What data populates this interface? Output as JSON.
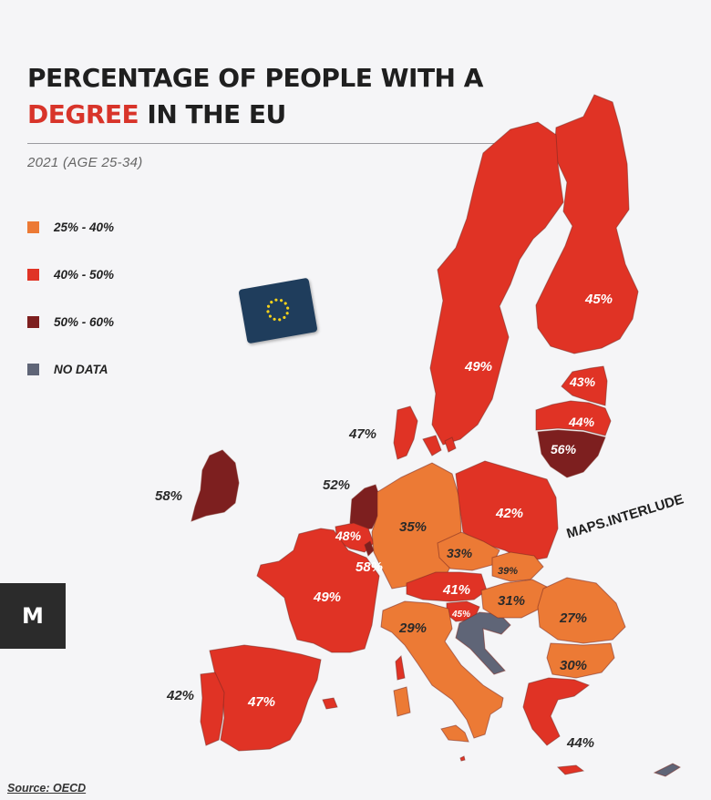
{
  "title": {
    "line1": "PERCENTAGE OF PEOPLE WITH A",
    "line2_highlight": "DEGREE",
    "line2_rest": " IN THE EU",
    "highlight_color": "#d8342a"
  },
  "subtitle": "2021  (AGE 25-34)",
  "legend": {
    "items": [
      {
        "label": "25% - 40%",
        "color": "#ec7a35"
      },
      {
        "label": "40% - 50%",
        "color": "#e03325"
      },
      {
        "label": "50% - 60%",
        "color": "#7d1f1f"
      },
      {
        "label": "NO DATA",
        "color": "#5f6577"
      }
    ]
  },
  "watermark": "MAPS.INTERLUDE",
  "logo_text": "M",
  "source": "Source: OECD",
  "eu_flag_icon": "eu-flag-icon",
  "countries": [
    {
      "id": "finland",
      "value": "45%",
      "band": 1
    },
    {
      "id": "sweden",
      "value": "49%",
      "band": 1
    },
    {
      "id": "estonia",
      "value": "43%",
      "band": 1
    },
    {
      "id": "latvia",
      "value": "44%",
      "band": 1
    },
    {
      "id": "lithuania",
      "value": "56%",
      "band": 2
    },
    {
      "id": "denmark",
      "value": "47%",
      "band": 1
    },
    {
      "id": "ireland",
      "value": "58%",
      "band": 2
    },
    {
      "id": "netherlands",
      "value": "52%",
      "band": 2
    },
    {
      "id": "belgium",
      "value": "48%",
      "band": 1
    },
    {
      "id": "luxembourg",
      "value": "58%",
      "band": 2
    },
    {
      "id": "germany",
      "value": "35%",
      "band": 0
    },
    {
      "id": "poland",
      "value": "42%",
      "band": 1
    },
    {
      "id": "czechia",
      "value": "33%",
      "band": 0
    },
    {
      "id": "slovakia",
      "value": "39%",
      "band": 0
    },
    {
      "id": "austria",
      "value": "41%",
      "band": 1
    },
    {
      "id": "slovenia",
      "value": "45%",
      "band": 1
    },
    {
      "id": "croatia",
      "value": "",
      "band": 3
    },
    {
      "id": "hungary",
      "value": "31%",
      "band": 0
    },
    {
      "id": "romania",
      "value": "27%",
      "band": 0
    },
    {
      "id": "bulgaria",
      "value": "30%",
      "band": 0
    },
    {
      "id": "greece",
      "value": "44%",
      "band": 1
    },
    {
      "id": "italy",
      "value": "29%",
      "band": 0
    },
    {
      "id": "france",
      "value": "49%",
      "band": 1
    },
    {
      "id": "spain",
      "value": "47%",
      "band": 1
    },
    {
      "id": "portugal",
      "value": "42%",
      "band": 1
    },
    {
      "id": "cyprus",
      "value": "",
      "band": 3
    },
    {
      "id": "malta",
      "value": "",
      "band": 1
    }
  ]
}
